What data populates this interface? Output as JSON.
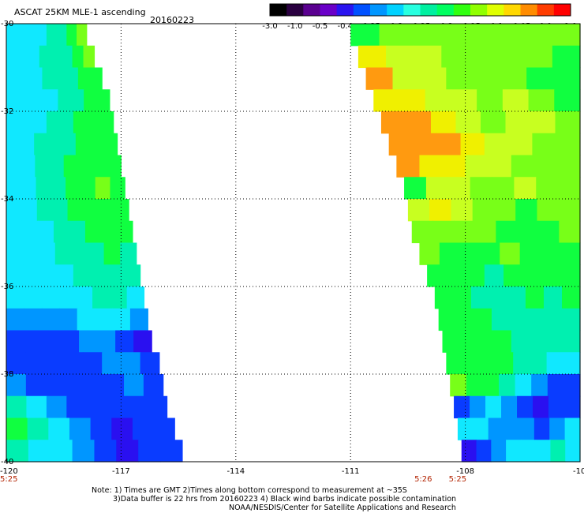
{
  "header": {
    "title": "ASCAT 25KM MLE-1 ascending",
    "date": "20160223"
  },
  "colorbar": {
    "colors": [
      "#000000",
      "#2a0040",
      "#5a0090",
      "#6a00c8",
      "#2a14f0",
      "#0050ff",
      "#0096ff",
      "#00d2ff",
      "#28ffe0",
      "#00f0a0",
      "#00ff60",
      "#30ff10",
      "#90ff00",
      "#e0ff00",
      "#ffd800",
      "#ff8c00",
      "#ff3c00",
      "#ff0000"
    ],
    "tick_labels": [
      "-3.0",
      "-1.0",
      "-0.5",
      "-0.4",
      "-0.35",
      "-0.3",
      "-0.25",
      "-0.2",
      "-0.15",
      "-0.1",
      "-0.05",
      "0.0",
      "1.0"
    ]
  },
  "chart_data": {
    "type": "heatmap",
    "title": "ASCAT 25KM MLE-1 ascending",
    "xlim": [
      -120,
      -105
    ],
    "ylim": [
      -40,
      -30
    ],
    "x_ticks": [
      {
        "value": -120,
        "label": "-120"
      },
      {
        "value": -117,
        "label": "-117"
      },
      {
        "value": -114,
        "label": "-114"
      },
      {
        "value": -111,
        "label": "-111"
      },
      {
        "value": -108,
        "label": "-108"
      },
      {
        "value": -105,
        "label": "-105"
      }
    ],
    "y_ticks": [
      {
        "value": -30,
        "label": "-30"
      },
      {
        "value": -32,
        "label": "-32"
      },
      {
        "value": -34,
        "label": "-34"
      },
      {
        "value": -36,
        "label": "-36"
      },
      {
        "value": -38,
        "label": "-38"
      },
      {
        "value": -40,
        "label": "-40"
      }
    ],
    "grid": true,
    "time_labels": [
      {
        "lon": -120,
        "label": "5:25"
      },
      {
        "lon": -109.1,
        "label": "5:26"
      },
      {
        "lon": -108.2,
        "label": "5:25"
      }
    ],
    "swaths": [
      {
        "name": "west",
        "lat_edges": [
          -30.0,
          -30.5,
          -31.0,
          -31.5,
          -32.0,
          -32.5,
          -33.0,
          -33.5,
          -34.0,
          -34.5,
          -35.0,
          -35.5,
          -36.0,
          -36.5,
          -37.0,
          -37.5,
          -38.0,
          -38.5,
          -39.0,
          -39.5,
          -40.0
        ],
        "lon_west": [
          -120,
          -120,
          -120,
          -120,
          -120,
          -120,
          -120,
          -120,
          -120,
          -120,
          -120,
          -120,
          -120,
          -120,
          -120,
          -120,
          -120,
          -120,
          -120,
          -120
        ],
        "lon_east": [
          -117.9,
          -117.7,
          -117.5,
          -117.3,
          -117.2,
          -117.1,
          -117.0,
          -116.9,
          -116.8,
          -116.7,
          -116.6,
          -116.5,
          -116.4,
          -116.3,
          -116.2,
          -116.0,
          -115.9,
          -115.8,
          -115.6,
          -115.4
        ],
        "value_rows": [
          [
            "-0.3",
            "-0.3",
            "-0.3",
            "-0.3",
            "-0.25",
            "-0.25",
            "-0.2",
            "-0.15"
          ],
          [
            "-0.3",
            "-0.3",
            "-0.3",
            "-0.25",
            "-0.25",
            "-0.25",
            "-0.2",
            "-0.15"
          ],
          [
            "-0.3",
            "-0.3",
            "-0.3",
            "-0.25",
            "-0.25",
            "-0.25",
            "-0.2",
            "-0.2"
          ],
          [
            "-0.3",
            "-0.3",
            "-0.3",
            "-0.3",
            "-0.25",
            "-0.25",
            "-0.2",
            "-0.2"
          ],
          [
            "-0.3",
            "-0.3",
            "-0.3",
            "-0.25",
            "-0.25",
            "-0.2",
            "-0.2",
            "-0.2"
          ],
          [
            "-0.3",
            "-0.3",
            "-0.25",
            "-0.25",
            "-0.25",
            "-0.2",
            "-0.2",
            "-0.2"
          ],
          [
            "-0.3",
            "-0.3",
            "-0.25",
            "-0.25",
            "-0.2",
            "-0.2",
            "-0.2",
            "-0.2"
          ],
          [
            "-0.3",
            "-0.3",
            "-0.25",
            "-0.25",
            "-0.2",
            "-0.2",
            "-0.15",
            "-0.2"
          ],
          [
            "-0.3",
            "-0.3",
            "-0.25",
            "-0.25",
            "-0.2",
            "-0.2",
            "-0.2",
            "-0.2"
          ],
          [
            "-0.3",
            "-0.3",
            "-0.3",
            "-0.25",
            "-0.25",
            "-0.2",
            "-0.2",
            "-0.2"
          ],
          [
            "-0.3",
            "-0.3",
            "-0.3",
            "-0.25",
            "-0.25",
            "-0.25",
            "-0.2",
            "-0.25"
          ],
          [
            "-0.3",
            "-0.3",
            "-0.3",
            "-0.3",
            "-0.25",
            "-0.25",
            "-0.25",
            "-0.25"
          ],
          [
            "-0.3",
            "-0.3",
            "-0.3",
            "-0.3",
            "-0.3",
            "-0.25",
            "-0.25",
            "-0.3"
          ],
          [
            "-0.35",
            "-0.35",
            "-0.35",
            "-0.35",
            "-0.3",
            "-0.3",
            "-0.3",
            "-0.35"
          ],
          [
            "-0.4",
            "-0.4",
            "-0.4",
            "-0.4",
            "-0.35",
            "-0.35",
            "-0.4",
            "-0.5"
          ],
          [
            "-0.4",
            "-0.4",
            "-0.4",
            "-0.4",
            "-0.4",
            "-0.35",
            "-0.35",
            "-0.4"
          ],
          [
            "-0.35",
            "-0.4",
            "-0.4",
            "-0.4",
            "-0.4",
            "-0.4",
            "-0.35",
            "-0.4"
          ],
          [
            "-0.25",
            "-0.3",
            "-0.35",
            "-0.4",
            "-0.4",
            "-0.4",
            "-0.4",
            "-0.4"
          ],
          [
            "-0.2",
            "-0.25",
            "-0.3",
            "-0.35",
            "-0.4",
            "-0.5",
            "-0.4",
            "-0.4"
          ],
          [
            "-0.25",
            "-0.3",
            "-0.3",
            "-0.35",
            "-0.4",
            "-0.5",
            "-0.4",
            "-0.4"
          ]
        ]
      },
      {
        "name": "east",
        "lat_edges": [
          -30.0,
          -30.5,
          -31.0,
          -31.5,
          -32.0,
          -32.5,
          -33.0,
          -33.5,
          -34.0,
          -34.5,
          -35.0,
          -35.5,
          -36.0,
          -36.5,
          -37.0,
          -37.5,
          -38.0,
          -38.5,
          -39.0,
          -39.5,
          -40.0
        ],
        "lon_west": [
          -111.0,
          -110.8,
          -110.6,
          -110.4,
          -110.2,
          -110.0,
          -109.8,
          -109.6,
          -109.5,
          -109.4,
          -109.2,
          -109.0,
          -108.8,
          -108.7,
          -108.6,
          -108.5,
          -108.4,
          -108.3,
          -108.2,
          -108.1
        ],
        "lon_east": [
          -105,
          -105,
          -105,
          -105,
          -105,
          -105,
          -105,
          -105,
          -105,
          -105,
          -105,
          -105,
          -105,
          -105,
          -105,
          -105,
          -105,
          -105,
          -105,
          -105
        ],
        "value_rows": [
          [
            "-0.2",
            "-0.15",
            "-0.15",
            "-0.15",
            "-0.15",
            "-0.15",
            "-0.15",
            "-0.15"
          ],
          [
            "-0.05",
            "-0.1",
            "-0.1",
            "-0.15",
            "-0.15",
            "-0.15",
            "-0.15",
            "-0.2"
          ],
          [
            "0.0",
            "-0.1",
            "-0.1",
            "-0.15",
            "-0.15",
            "-0.15",
            "-0.2",
            "-0.2"
          ],
          [
            "-0.05",
            "-0.05",
            "-0.1",
            "-0.1",
            "-0.15",
            "-0.1",
            "-0.15",
            "-0.2"
          ],
          [
            "0.0",
            "0.0",
            "-0.05",
            "-0.1",
            "-0.15",
            "-0.1",
            "-0.1",
            "-0.15"
          ],
          [
            "0.0",
            "0.0",
            "0.0",
            "-0.05",
            "-0.1",
            "-0.1",
            "-0.15",
            "-0.15"
          ],
          [
            "0.0",
            "-0.05",
            "-0.05",
            "-0.1",
            "-0.1",
            "-0.15",
            "-0.15",
            "-0.15"
          ],
          [
            "-0.2",
            "-0.1",
            "-0.1",
            "-0.15",
            "-0.15",
            "-0.1",
            "-0.15",
            "-0.15"
          ],
          [
            "-0.1",
            "-0.05",
            "-0.1",
            "-0.15",
            "-0.15",
            "-0.2",
            "-0.15",
            "-0.15"
          ],
          [
            "-0.15",
            "-0.15",
            "-0.15",
            "-0.15",
            "-0.2",
            "-0.2",
            "-0.2",
            "-0.15"
          ],
          [
            "-0.15",
            "-0.2",
            "-0.2",
            "-0.2",
            "-0.15",
            "-0.2",
            "-0.2",
            "-0.2"
          ],
          [
            "-0.2",
            "-0.2",
            "-0.2",
            "-0.25",
            "-0.2",
            "-0.2",
            "-0.2",
            "-0.2"
          ],
          [
            "-0.2",
            "-0.2",
            "-0.25",
            "-0.25",
            "-0.25",
            "-0.2",
            "-0.25",
            "-0.2"
          ],
          [
            "-0.2",
            "-0.2",
            "-0.2",
            "-0.25",
            "-0.25",
            "-0.25",
            "-0.25",
            "-0.25"
          ],
          [
            "-0.2",
            "-0.2",
            "-0.2",
            "-0.2",
            "-0.25",
            "-0.25",
            "-0.25",
            "-0.25"
          ],
          [
            "-0.2",
            "-0.2",
            "-0.2",
            "-0.2",
            "-0.25",
            "-0.25",
            "-0.3",
            "-0.3"
          ],
          [
            "-0.15",
            "-0.2",
            "-0.2",
            "-0.25",
            "-0.3",
            "-0.35",
            "-0.4",
            "-0.4"
          ],
          [
            "-0.4",
            "-0.35",
            "-0.3",
            "-0.35",
            "-0.4",
            "-0.5",
            "-0.4",
            "-0.4"
          ],
          [
            "-0.3",
            "-0.3",
            "-0.35",
            "-0.35",
            "-0.35",
            "-0.4",
            "-0.35",
            "-0.3"
          ],
          [
            "-0.5",
            "-0.4",
            "-0.35",
            "-0.3",
            "-0.3",
            "-0.3",
            "-0.25",
            "-0.3"
          ]
        ]
      }
    ]
  },
  "notes": {
    "line1": "Note: 1) Times are GMT 2)Times along bottom correspond to measurement at ~35S",
    "line2": "3)Data buffer is 22 hrs from 20160223 4) Black wind barbs indicate possible contamination",
    "line3": "NOAA/NESDIS/Center for Satellite Applications and Research"
  }
}
